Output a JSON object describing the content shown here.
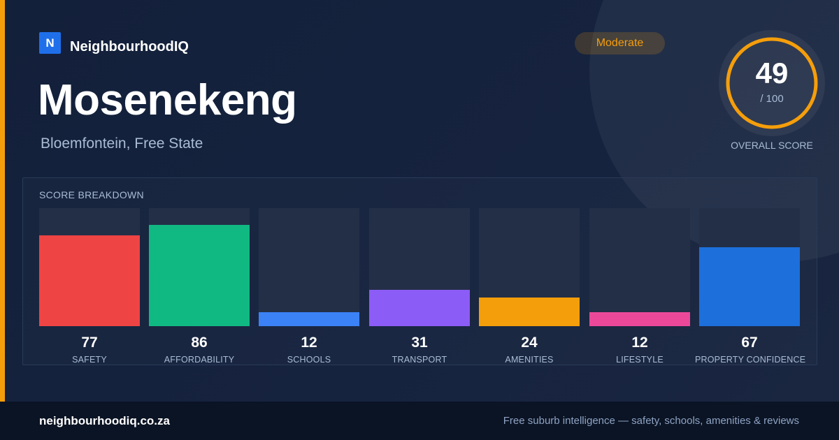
{
  "brand": {
    "logo_letter": "N",
    "name": "NeighbourhoodIQ"
  },
  "rating": {
    "label": "Moderate",
    "color": "#f59e0b"
  },
  "suburb": {
    "name": "Mosenekeng",
    "location": "Bloemfontein, Free State"
  },
  "overall_score": {
    "value": "49",
    "max": "/ 100",
    "label": "OVERALL SCORE",
    "fraction": 0.49
  },
  "breakdown": {
    "title": "SCORE BREAKDOWN",
    "max": 100,
    "metrics": [
      {
        "label": "SAFETY",
        "value": 77,
        "color": "#ef4444"
      },
      {
        "label": "AFFORDABILITY",
        "value": 86,
        "color": "#10b981"
      },
      {
        "label": "SCHOOLS",
        "value": 12,
        "color": "#3b82f6"
      },
      {
        "label": "TRANSPORT",
        "value": 31,
        "color": "#8b5cf6"
      },
      {
        "label": "AMENITIES",
        "value": 24,
        "color": "#f59e0b"
      },
      {
        "label": "LIFESTYLE",
        "value": 12,
        "color": "#ec4899"
      },
      {
        "label": "PROPERTY CONFIDENCE",
        "value": 67,
        "color": "#1d6fdb"
      }
    ]
  },
  "footer": {
    "domain": "neighbourhoodiq.co.za",
    "tagline": "Free suburb intelligence — safety, schools, amenities & reviews"
  }
}
